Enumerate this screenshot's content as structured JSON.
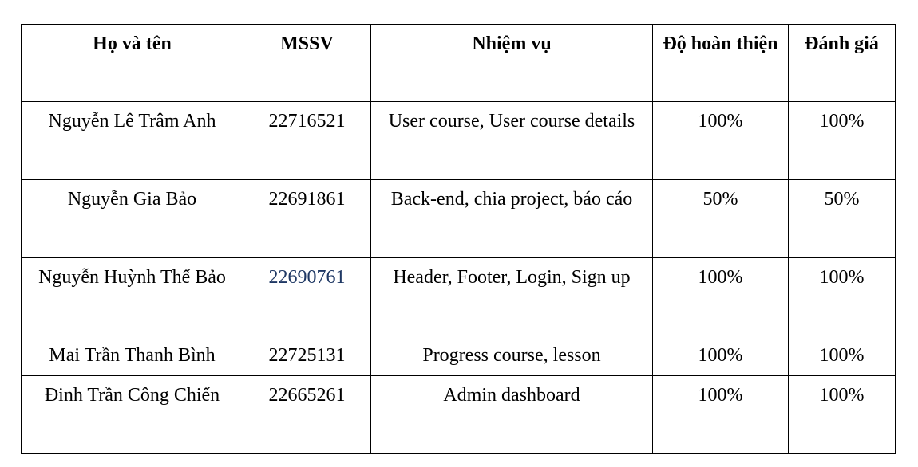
{
  "table": {
    "headers": [
      "Họ và tên",
      "MSSV",
      "Nhiệm vụ",
      "Độ hoàn thiện",
      "Đánh giá"
    ],
    "rows": [
      {
        "name": "Nguyễn Lê Trâm Anh",
        "mssv": "22716521",
        "task": "User course, User course details",
        "completion": "100%",
        "rating": "100%"
      },
      {
        "name": "Nguyễn Gia Bảo",
        "mssv": "22691861",
        "task": "Back-end, chia project, báo cáo",
        "completion": "50%",
        "rating": "50%"
      },
      {
        "name": "Nguyễn Huỳnh Thế Bảo",
        "mssv": "22690761",
        "task": "Header, Footer, Login, Sign up",
        "completion": "100%",
        "rating": "100%"
      },
      {
        "name": "Mai Trần Thanh Bình",
        "mssv": "22725131",
        "task": "Progress course, lesson",
        "completion": "100%",
        "rating": "100%"
      },
      {
        "name": "Đinh Trần Công Chiến",
        "mssv": "22665261",
        "task": "Admin dashboard",
        "completion": "100%",
        "rating": "100%"
      }
    ]
  },
  "colors": {
    "border": "#000000",
    "text": "#000000",
    "mssv_highlight": "#1f3864"
  }
}
